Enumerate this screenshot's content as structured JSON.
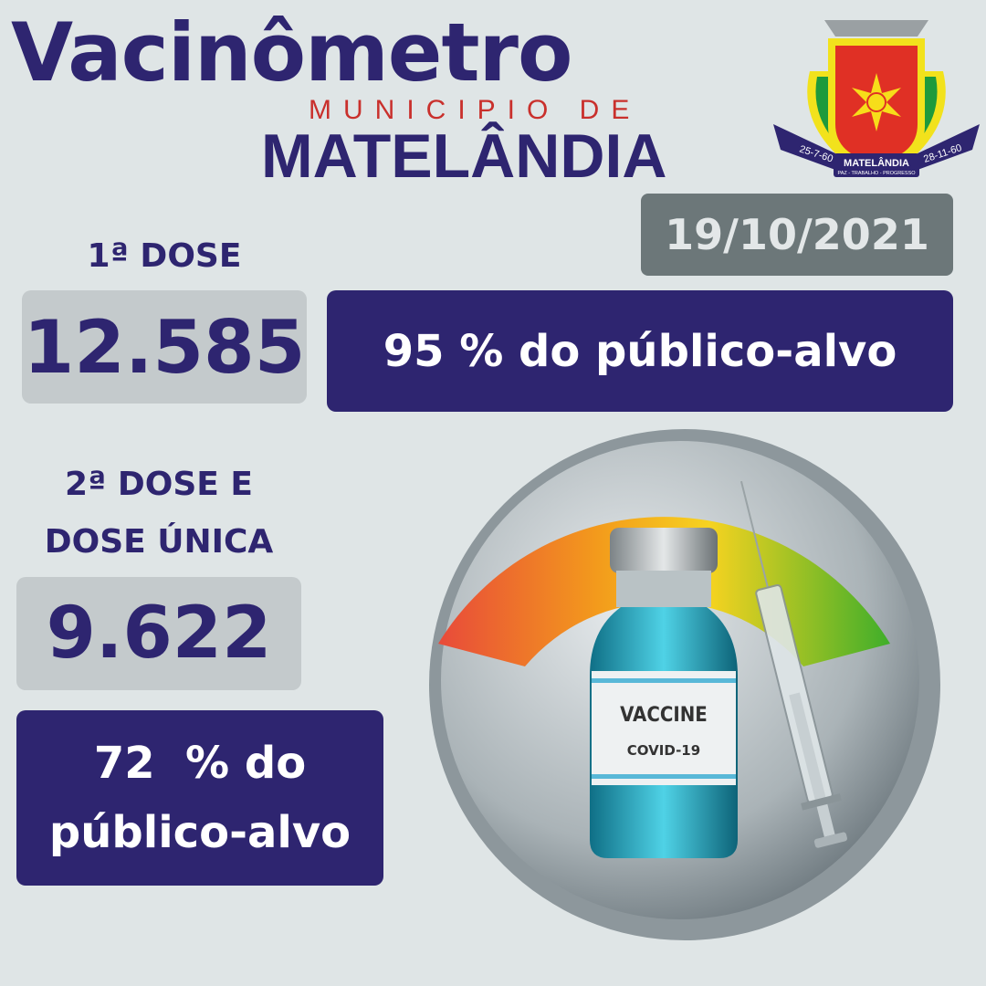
{
  "header": {
    "title": "Vacinômetro",
    "subtitle": "MUNICIPIO DE",
    "city": "MATELÂNDIA"
  },
  "logo": {
    "name": "MATELÂNDIA",
    "motto": "PAZ - TRABALHO - PROGRESSO",
    "date_left": "25-7-60",
    "date_right": "28-11-60"
  },
  "date": "19/10/2021",
  "first_dose": {
    "label": "1ª DOSE",
    "count": "12.585",
    "percent_text": "95 % do público-alvo",
    "percent": 95
  },
  "second_dose": {
    "label_line1": "2ª DOSE E",
    "label_line2": "DOSE ÚNICA",
    "count": "9.622",
    "percent_line1": "72  % do",
    "percent_line2": "público-alvo",
    "percent": 72
  },
  "illustration": {
    "vial_label": "VACCINE",
    "vial_sublabel": "COVID-19"
  },
  "colors": {
    "navy": "#2e2570",
    "red": "#c9302c",
    "background": "#dfe5e6",
    "gray_box": "#c4cacc",
    "date_box": "#6c7779"
  }
}
